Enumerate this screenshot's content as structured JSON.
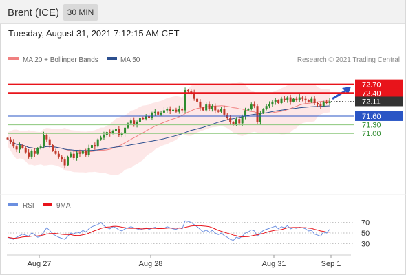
{
  "header": {
    "title": "Brent (ICE)",
    "timeframe": "30 MIN"
  },
  "timestamp": "Tuesday, August 31, 2021 7:12:15 AM CET",
  "legend": {
    "ma20": "MA 20 + Bollinger Bands",
    "ma50": "MA 50",
    "credit": "Research © 2021 Trading Central",
    "rsi": "RSI",
    "ma9": "9MA"
  },
  "colors": {
    "resistance": "#e8141b",
    "support": "#2a55c5",
    "target": "#8cc77c",
    "ma20": "#f08080",
    "ma50": "#2c4f8f",
    "band": "#fde3e3",
    "candle_up": "#2e8b2e",
    "candle_down": "#c0392b",
    "arrow": "#2a55c5",
    "rsi": "#6b8fe0",
    "rsi_ma": "#e8141b"
  },
  "chart_data": [
    {
      "type": "candlestick",
      "x_ticks": [
        "Aug 27",
        "Aug 28",
        "Aug 31",
        "Sep 1"
      ],
      "ylim": [
        69.2,
        73.0
      ],
      "levels": [
        {
          "value": 72.7,
          "label": "72.70",
          "kind": "resistance"
        },
        {
          "value": 72.4,
          "label": "72.40",
          "kind": "resistance"
        },
        {
          "value": 72.11,
          "label": "72.11",
          "kind": "last"
        },
        {
          "value": 71.6,
          "label": "71.60",
          "kind": "pivot"
        },
        {
          "value": 71.3,
          "label": "71.30",
          "kind": "support"
        },
        {
          "value": 71.0,
          "label": "71.00",
          "kind": "support"
        }
      ],
      "close": [
        70.8,
        70.7,
        70.55,
        70.45,
        70.6,
        70.5,
        70.35,
        70.2,
        70.4,
        70.3,
        70.5,
        70.55,
        70.95,
        70.8,
        70.6,
        70.4,
        70.3,
        70.2,
        70.1,
        69.9,
        70.2,
        70.3,
        70.15,
        70.35,
        70.3,
        70.4,
        70.25,
        70.5,
        70.6,
        70.55,
        70.8,
        70.85,
        70.95,
        71.05,
        71.0,
        71.1,
        71.15,
        70.95,
        71.0,
        71.2,
        71.35,
        71.45,
        71.3,
        71.4,
        71.55,
        71.5,
        71.6,
        71.55,
        71.7,
        71.75,
        71.65,
        71.72,
        71.8,
        71.85,
        71.78,
        71.82,
        71.75,
        71.85,
        71.8,
        72.5,
        72.45,
        72.4,
        72.2,
        72.1,
        71.9,
        71.8,
        72.0,
        71.85,
        71.95,
        71.8,
        71.75,
        71.85,
        71.65,
        71.55,
        71.4,
        71.3,
        71.5,
        71.35,
        71.6,
        71.8,
        71.85,
        72.0,
        71.95,
        71.4,
        71.7,
        71.85,
        71.95,
        72.0,
        72.1,
        72.15,
        72.05,
        72.2,
        72.15,
        72.25,
        72.1,
        72.2,
        72.15,
        72.25,
        72.2,
        72.15,
        72.1,
        72.2,
        72.05,
        72.0,
        71.95,
        72.1,
        72.05,
        72.11
      ],
      "rsi": [
        42,
        40,
        38,
        42,
        45,
        48,
        46,
        44,
        50,
        47,
        42,
        44,
        52,
        60,
        55,
        48,
        45,
        42,
        40,
        38,
        44,
        50,
        48,
        52,
        50,
        55,
        52,
        58,
        62,
        64,
        66,
        70,
        64,
        60,
        58,
        62,
        60,
        56,
        54,
        58,
        60,
        62,
        60,
        58,
        56,
        58,
        60,
        57,
        59,
        61,
        58,
        60,
        59,
        62,
        60,
        58,
        57,
        60,
        58,
        73,
        72,
        70,
        66,
        62,
        57,
        52,
        56,
        51,
        55,
        50,
        47,
        50,
        45,
        42,
        38,
        36,
        42,
        40,
        44,
        50,
        52,
        56,
        54,
        44,
        50,
        55,
        57,
        59,
        61,
        63,
        58,
        62,
        60,
        64,
        58,
        60,
        59,
        61,
        60,
        58,
        54,
        55,
        48,
        46,
        44,
        52,
        50,
        57
      ]
    }
  ]
}
